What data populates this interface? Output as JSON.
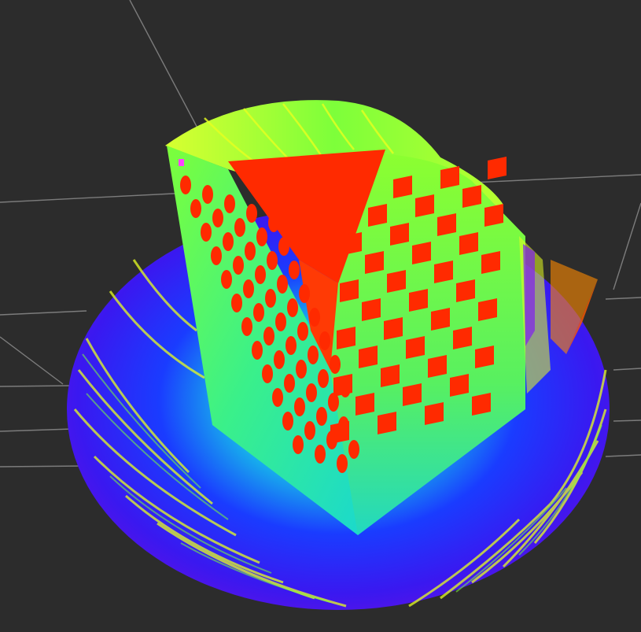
{
  "viewer": {
    "background_color": "#2c2c2c",
    "grid_color": "#8a8a8a",
    "colormap": [
      "#5a00e0",
      "#1a2cff",
      "#00c8ff",
      "#21f0b4",
      "#7dff3a",
      "#e8ff20",
      "#ff8a00",
      "#ff2a00"
    ],
    "target_color": "#ff2a00",
    "grid_visible": true
  }
}
